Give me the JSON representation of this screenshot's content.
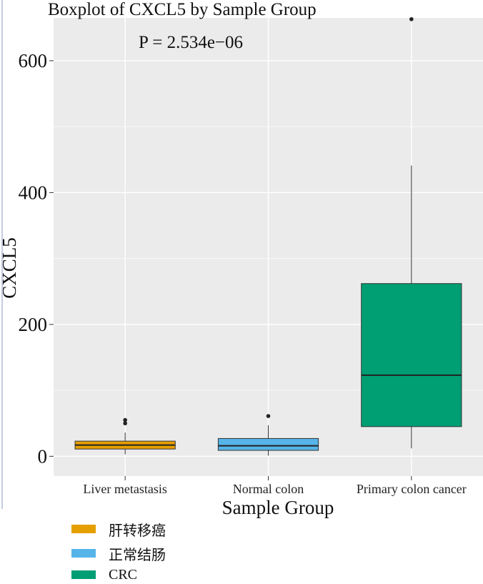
{
  "chart_data": {
    "type": "boxplot",
    "title": "Boxplot of CXCL5 by Sample Group",
    "annotation": "P = 2.534e−06",
    "xlabel": "Sample Group",
    "ylabel": "CXCL5",
    "ylim": [
      -30,
      665
    ],
    "yticks": [
      0,
      200,
      400,
      600
    ],
    "grid": true,
    "categories": [
      "Liver metastasis",
      "Normal colon",
      "Primary colon cancer"
    ],
    "boxes": [
      {
        "category": "Liver metastasis",
        "whisker_low": 3,
        "q1": 11,
        "median": 17,
        "q3": 23,
        "whisker_high": 36,
        "outliers": [
          50,
          55
        ],
        "color": "#E69F00"
      },
      {
        "category": "Normal colon",
        "whisker_low": 1,
        "q1": 9,
        "median": 16,
        "q3": 27,
        "whisker_high": 47,
        "outliers": [
          61
        ],
        "color": "#56B4E9"
      },
      {
        "category": "Primary colon cancer",
        "whisker_low": 12,
        "q1": 45,
        "median": 123,
        "q3": 262,
        "whisker_high": 441,
        "outliers": [
          663
        ],
        "color": "#009E73"
      }
    ],
    "legend": {
      "placement": "bottom-left",
      "entries": [
        {
          "label": "肝转移癌",
          "color": "#E69F00"
        },
        {
          "label": "正常结肠",
          "color": "#56B4E9"
        },
        {
          "label": "CRC",
          "color": "#009E73"
        }
      ]
    },
    "panel_color": "#EBEBEB",
    "grid_color": "#FFFFFF"
  }
}
